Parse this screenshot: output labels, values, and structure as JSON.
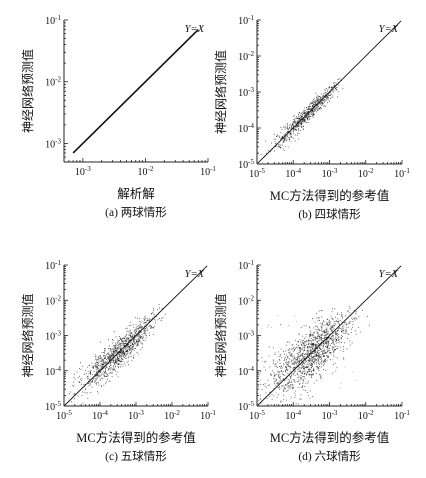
{
  "colors": {
    "axis": "#222222",
    "line": "#111111",
    "points": "#1a1a1a"
  },
  "chart_data": [
    {
      "type": "scatter",
      "scale": "log",
      "grid": false,
      "caption": "(a) 两球情形",
      "xlabel": "解析解",
      "ylabel": "神经网络预测值",
      "xlim": [
        0.0005,
        0.1
      ],
      "ylim": [
        0.0005,
        0.1
      ],
      "xticks": [
        0.001,
        0.01,
        0.1
      ],
      "yticks": [
        0.001,
        0.01,
        0.1
      ],
      "xtick_labels": [
        {
          "b": "10",
          "e": "-3"
        },
        {
          "b": "10",
          "e": "-2"
        },
        {
          "b": "10",
          "e": "-1"
        }
      ],
      "ytick_labels": [
        {
          "b": "10",
          "e": "-3"
        },
        {
          "b": "10",
          "e": "-2"
        },
        {
          "b": "10",
          "e": "-1"
        }
      ],
      "reference_line": "Y=X",
      "cloud": {
        "x_range": [
          0.0007,
          0.07
        ],
        "spread_decades": 0.01,
        "density": "perfect-fit"
      }
    },
    {
      "type": "scatter",
      "scale": "log",
      "grid": false,
      "caption": "(b) 四球情形",
      "xlabel": "MC方法得到的参考值",
      "ylabel": "神经网络预测值",
      "xlim": [
        1e-05,
        0.1
      ],
      "ylim": [
        1e-05,
        0.1
      ],
      "xticks": [
        1e-05,
        0.0001,
        0.001,
        0.01,
        0.1
      ],
      "yticks": [
        1e-05,
        0.0001,
        0.001,
        0.01,
        0.1
      ],
      "xtick_labels": [
        {
          "b": "10",
          "e": "-5"
        },
        {
          "b": "10",
          "e": "-4"
        },
        {
          "b": "10",
          "e": "-3"
        },
        {
          "b": "10",
          "e": "-2"
        },
        {
          "b": "10",
          "e": "-1"
        }
      ],
      "ytick_labels": [
        {
          "b": "10",
          "e": "-5"
        },
        {
          "b": "10",
          "e": "-4"
        },
        {
          "b": "10",
          "e": "-3"
        },
        {
          "b": "10",
          "e": "-2"
        },
        {
          "b": "10",
          "e": "-1"
        }
      ],
      "reference_line": "Y=X",
      "cloud": {
        "x_range": [
          1.2e-05,
          0.003
        ],
        "spread_decades": 0.09,
        "density": "tight"
      }
    },
    {
      "type": "scatter",
      "scale": "log",
      "grid": false,
      "caption": "(c) 五球情形",
      "xlabel": "MC方法得到的参考值",
      "ylabel": "神经网络预测值",
      "xlim": [
        1e-05,
        0.1
      ],
      "ylim": [
        1e-05,
        0.1
      ],
      "xticks": [
        1e-05,
        0.0001,
        0.001,
        0.01,
        0.1
      ],
      "yticks": [
        1e-05,
        0.0001,
        0.001,
        0.01,
        0.1
      ],
      "xtick_labels": [
        {
          "b": "10",
          "e": "-5"
        },
        {
          "b": "10",
          "e": "-4"
        },
        {
          "b": "10",
          "e": "-3"
        },
        {
          "b": "10",
          "e": "-2"
        },
        {
          "b": "10",
          "e": "-1"
        }
      ],
      "ytick_labels": [
        {
          "b": "10",
          "e": "-5"
        },
        {
          "b": "10",
          "e": "-4"
        },
        {
          "b": "10",
          "e": "-3"
        },
        {
          "b": "10",
          "e": "-2"
        },
        {
          "b": "10",
          "e": "-1"
        }
      ],
      "reference_line": "Y=X",
      "cloud": {
        "x_range": [
          1.2e-05,
          0.006
        ],
        "spread_decades": 0.17,
        "density": "moderate"
      }
    },
    {
      "type": "scatter",
      "scale": "log",
      "grid": false,
      "caption": "(d) 六球情形",
      "xlabel": "MC方法得到的参考值",
      "ylabel": "神经网络预测值",
      "xlim": [
        1e-05,
        0.1
      ],
      "ylim": [
        1e-05,
        0.1
      ],
      "xticks": [
        1e-05,
        0.0001,
        0.001,
        0.01,
        0.1
      ],
      "yticks": [
        1e-05,
        0.0001,
        0.001,
        0.01,
        0.1
      ],
      "xtick_labels": [
        {
          "b": "10",
          "e": "-5"
        },
        {
          "b": "10",
          "e": "-4"
        },
        {
          "b": "10",
          "e": "-3"
        },
        {
          "b": "10",
          "e": "-2"
        },
        {
          "b": "10",
          "e": "-1"
        }
      ],
      "ytick_labels": [
        {
          "b": "10",
          "e": "-5"
        },
        {
          "b": "10",
          "e": "-4"
        },
        {
          "b": "10",
          "e": "-3"
        },
        {
          "b": "10",
          "e": "-2"
        },
        {
          "b": "10",
          "e": "-1"
        }
      ],
      "reference_line": "Y=X",
      "cloud": {
        "x_range": [
          1.2e-05,
          0.006
        ],
        "spread_decades": 0.3,
        "density": "broad"
      }
    }
  ]
}
